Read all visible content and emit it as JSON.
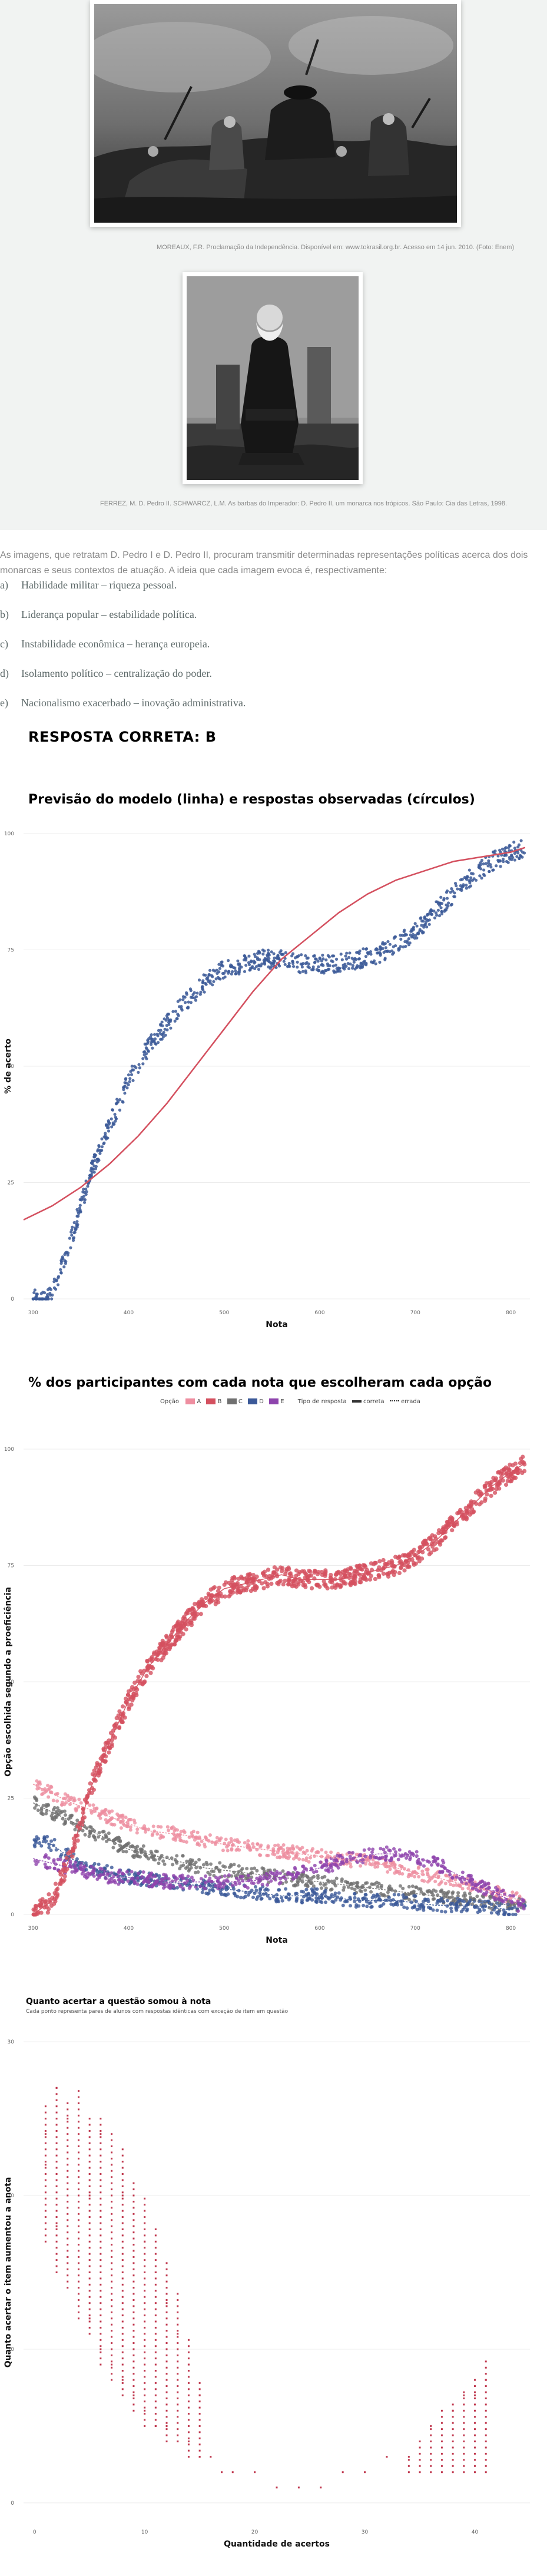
{
  "images": [
    {
      "caption": "MOREAUX, F.R. Proclamação da Independência. Disponível em: www.tokrasil.org.br. Acesso em 14 jun. 2010. (Foto: Enem)"
    },
    {
      "caption": "FERREZ, M. D. Pedro II. SCHWARCZ, L.M. As barbas do Imperador: D. Pedro II, um monarca nos trópicos. São Paulo: Cia das Letras, 1998."
    }
  ],
  "question": {
    "text": "As imagens, que retratam D. Pedro I e D. Pedro II, procuram transmitir determinadas representações políticas acerca dos dois monarcas e seus contextos de atuação. A ideia que cada imagem evoca é, respectivamente:",
    "options": [
      {
        "letter": "a)",
        "text": "Habilidade militar – riqueza pessoal."
      },
      {
        "letter": "b)",
        "text": "Liderança popular – estabilidade política."
      },
      {
        "letter": "c)",
        "text": "Instabilidade econômica – herança europeia."
      },
      {
        "letter": "d)",
        "text": "Isolamento político – centralização do poder."
      },
      {
        "letter": "e)",
        "text": "Nacionalismo exacerbado – inovação administrativa."
      }
    ],
    "answer": "RESPOSTA CORRETA: B"
  },
  "colors": {
    "blue": "#3b5998",
    "red": "#d4505f",
    "pink": "#ee8ea0",
    "gray": "#707070",
    "purple": "#8e44ad",
    "background": "#f1f3f2"
  },
  "chart_data": [
    {
      "type": "scatter",
      "title": "Previsão do modelo (linha) e respostas observadas (círculos)",
      "xlabel": "Nota",
      "ylabel": "% de acerto",
      "xticks": [
        "300",
        "400",
        "500",
        "600",
        "700",
        "800"
      ],
      "yticks": [
        "0",
        "25",
        "50",
        "75",
        "100"
      ],
      "xlim": [
        290,
        820
      ],
      "ylim": [
        0,
        100
      ],
      "observed": [
        [
          300,
          0
        ],
        [
          315,
          0
        ],
        [
          320,
          2
        ],
        [
          330,
          7
        ],
        [
          340,
          13
        ],
        [
          350,
          20
        ],
        [
          360,
          27
        ],
        [
          375,
          35
        ],
        [
          390,
          42
        ],
        [
          400,
          47
        ],
        [
          420,
          54
        ],
        [
          440,
          59
        ],
        [
          460,
          64
        ],
        [
          480,
          68
        ],
        [
          500,
          71
        ],
        [
          520,
          72
        ],
        [
          540,
          73
        ],
        [
          560,
          73
        ],
        [
          580,
          72
        ],
        [
          600,
          72
        ],
        [
          620,
          72
        ],
        [
          640,
          73
        ],
        [
          660,
          74
        ],
        [
          680,
          76
        ],
        [
          700,
          79
        ],
        [
          720,
          83
        ],
        [
          740,
          87
        ],
        [
          760,
          91
        ],
        [
          780,
          94
        ],
        [
          800,
          96
        ],
        [
          815,
          97
        ]
      ],
      "model": [
        [
          290,
          17
        ],
        [
          320,
          20
        ],
        [
          350,
          24
        ],
        [
          380,
          29
        ],
        [
          410,
          35
        ],
        [
          440,
          42
        ],
        [
          470,
          50
        ],
        [
          500,
          58
        ],
        [
          530,
          66
        ],
        [
          560,
          73
        ],
        [
          590,
          78
        ],
        [
          620,
          83
        ],
        [
          650,
          87
        ],
        [
          680,
          90
        ],
        [
          710,
          92
        ],
        [
          740,
          94
        ],
        [
          770,
          95
        ],
        [
          800,
          96
        ],
        [
          815,
          97
        ]
      ]
    },
    {
      "type": "scatter",
      "title": "% dos participantes com cada nota que escolheram cada opção",
      "xlabel": "Nota",
      "ylabel": "Opção escolhida segundo a proeficiência",
      "legend_option_label": "Opção",
      "legend_type_label": "Tipo de resposta",
      "xticks": [
        "300",
        "400",
        "500",
        "600",
        "700",
        "800"
      ],
      "yticks": [
        "0",
        "25",
        "50",
        "75",
        "100"
      ],
      "xlim": [
        290,
        820
      ],
      "ylim": [
        0,
        100
      ],
      "series": [
        {
          "name": "A",
          "color": "#ee8ea0",
          "values": [
            [
              300,
              28
            ],
            [
              340,
              24
            ],
            [
              380,
              21
            ],
            [
              420,
              18
            ],
            [
              460,
              17
            ],
            [
              500,
              15
            ],
            [
              540,
              14
            ],
            [
              580,
              13
            ],
            [
              620,
              12
            ],
            [
              660,
              11
            ],
            [
              700,
              9
            ],
            [
              740,
              7
            ],
            [
              780,
              5
            ],
            [
              810,
              3
            ]
          ]
        },
        {
          "name": "B",
          "color": "#d4505f",
          "values": [
            [
              300,
              0
            ],
            [
              320,
              3
            ],
            [
              340,
              13
            ],
            [
              360,
              27
            ],
            [
              380,
              37
            ],
            [
              400,
              46
            ],
            [
              420,
              53
            ],
            [
              440,
              58
            ],
            [
              460,
              63
            ],
            [
              480,
              67
            ],
            [
              500,
              70
            ],
            [
              520,
              71
            ],
            [
              540,
              72
            ],
            [
              560,
              73
            ],
            [
              580,
              72
            ],
            [
              600,
              72
            ],
            [
              620,
              72
            ],
            [
              640,
              73
            ],
            [
              660,
              74
            ],
            [
              680,
              75
            ],
            [
              700,
              77
            ],
            [
              720,
              80
            ],
            [
              740,
              84
            ],
            [
              760,
              88
            ],
            [
              780,
              92
            ],
            [
              800,
              95
            ],
            [
              815,
              97
            ]
          ]
        },
        {
          "name": "C",
          "color": "#707070",
          "values": [
            [
              300,
              24
            ],
            [
              320,
              22
            ],
            [
              340,
              20
            ],
            [
              360,
              18
            ],
            [
              380,
              16
            ],
            [
              400,
              14
            ],
            [
              440,
              12
            ],
            [
              480,
              10
            ],
            [
              520,
              9
            ],
            [
              560,
              8
            ],
            [
              600,
              7
            ],
            [
              640,
              6
            ],
            [
              680,
              5
            ],
            [
              720,
              4
            ],
            [
              760,
              3
            ],
            [
              800,
              2
            ]
          ]
        },
        {
          "name": "D",
          "color": "#3b5998",
          "values": [
            [
              300,
              16
            ],
            [
              320,
              15
            ],
            [
              340,
              12
            ],
            [
              360,
              10
            ],
            [
              380,
              9
            ],
            [
              400,
              8
            ],
            [
              440,
              7
            ],
            [
              480,
              6
            ],
            [
              520,
              5
            ],
            [
              560,
              4
            ],
            [
              600,
              4
            ],
            [
              640,
              3
            ],
            [
              680,
              3
            ],
            [
              720,
              2
            ],
            [
              760,
              2
            ],
            [
              800,
              1
            ]
          ]
        },
        {
          "name": "E",
          "color": "#8e44ad",
          "values": [
            [
              300,
              12
            ],
            [
              320,
              11
            ],
            [
              340,
              10
            ],
            [
              360,
              9
            ],
            [
              380,
              8
            ],
            [
              400,
              8
            ],
            [
              440,
              7
            ],
            [
              480,
              7
            ],
            [
              520,
              7
            ],
            [
              560,
              8
            ],
            [
              600,
              10
            ],
            [
              630,
              12
            ],
            [
              660,
              13
            ],
            [
              690,
              13
            ],
            [
              720,
              11
            ],
            [
              750,
              8
            ],
            [
              780,
              5
            ],
            [
              810,
              2
            ]
          ]
        }
      ],
      "legend_types": [
        "correta",
        "errada"
      ]
    },
    {
      "type": "scatter",
      "title": "Quanto acertar a questão somou à nota",
      "subtitle": "Cada ponto representa pares de alunos com respostas idênticas com exceção de item em questão",
      "xlabel": "Quantidade de acertos",
      "ylabel": "Quanto acertar o item aumentou a anota",
      "xticks": [
        "0",
        "10",
        "20",
        "30",
        "40"
      ],
      "yticks": [
        "0",
        "10",
        "20",
        "30"
      ],
      "xlim": [
        -1,
        45
      ],
      "ylim": [
        -1,
        31
      ],
      "values": [
        [
          1,
          22
        ],
        [
          1,
          24
        ],
        [
          2,
          18
        ],
        [
          2,
          27
        ],
        [
          3,
          16
        ],
        [
          3,
          25
        ],
        [
          4,
          14
        ],
        [
          4,
          26
        ],
        [
          5,
          12
        ],
        [
          5,
          20
        ],
        [
          6,
          10
        ],
        [
          6,
          24
        ],
        [
          7,
          9
        ],
        [
          7,
          22
        ],
        [
          8,
          8
        ],
        [
          8,
          20
        ],
        [
          9,
          7
        ],
        [
          9,
          18
        ],
        [
          10,
          6
        ],
        [
          10,
          17
        ],
        [
          11,
          5
        ],
        [
          11,
          15
        ],
        [
          12,
          5
        ],
        [
          12,
          13
        ],
        [
          13,
          4
        ],
        [
          13,
          11
        ],
        [
          14,
          4
        ],
        [
          14,
          9
        ],
        [
          15,
          3
        ],
        [
          15,
          7
        ],
        [
          16,
          3
        ],
        [
          17,
          2
        ],
        [
          18,
          2
        ],
        [
          20,
          2
        ],
        [
          22,
          1
        ],
        [
          24,
          1
        ],
        [
          26,
          1
        ],
        [
          28,
          2
        ],
        [
          30,
          2
        ],
        [
          32,
          3
        ],
        [
          34,
          3
        ],
        [
          35,
          4
        ],
        [
          36,
          5
        ],
        [
          37,
          6
        ],
        [
          38,
          6
        ],
        [
          39,
          7
        ],
        [
          40,
          7
        ],
        [
          41,
          8
        ]
      ]
    }
  ]
}
